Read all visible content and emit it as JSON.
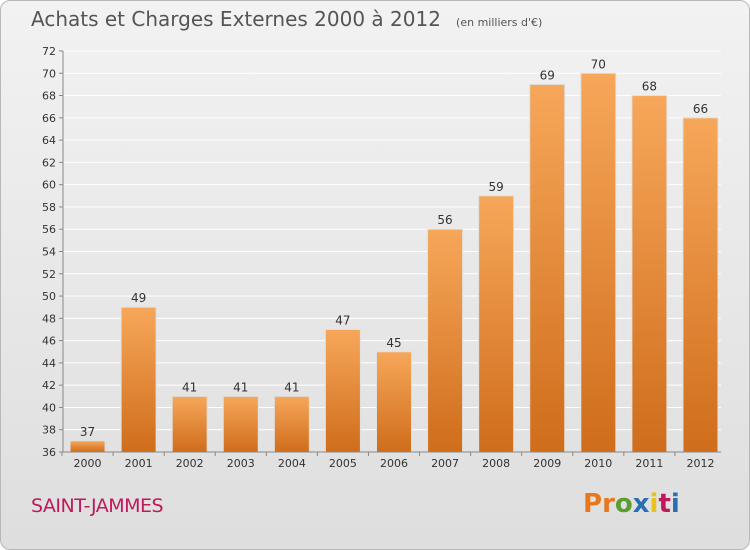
{
  "header": {
    "title": "Achats et Charges Externes 2000 à 2012",
    "unit": "(en milliers d'€)"
  },
  "footer": {
    "commune": "SAINT-JAMMES",
    "brand": "Proxiti",
    "brand_colors": [
      "#e8781e",
      "#e8781e",
      "#5a9e2f",
      "#2a6fb0",
      "#e8c21e",
      "#c0185c",
      "#2a6fb0"
    ]
  },
  "colors": {
    "bar_top": "#f7a75a",
    "bar_bottom": "#cf6d1b",
    "grid": "#ffffff",
    "axis_text": "#333333"
  },
  "chart_data": {
    "type": "bar",
    "title": "Achats et Charges Externes 2000 à 2012",
    "subtitle": "(en milliers d'€)",
    "categories": [
      "2000",
      "2001",
      "2002",
      "2003",
      "2004",
      "2005",
      "2006",
      "2007",
      "2008",
      "2009",
      "2010",
      "2011",
      "2012"
    ],
    "values": [
      37,
      49,
      41,
      41,
      41,
      47,
      45,
      56,
      59,
      69,
      70,
      68,
      66
    ],
    "ylim": [
      36,
      72
    ],
    "yticks": [
      36,
      38,
      40,
      42,
      44,
      46,
      48,
      50,
      52,
      54,
      56,
      58,
      60,
      62,
      64,
      66,
      68,
      70,
      72
    ],
    "grid": true,
    "data_labels": true
  }
}
